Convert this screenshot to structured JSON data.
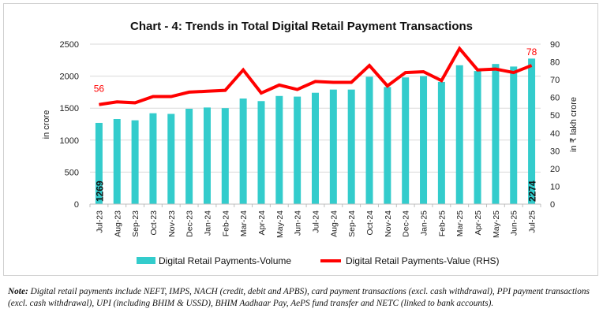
{
  "chart_data": {
    "type": "bar+line",
    "title": "Chart - 4: Trends in Total Digital Retail Payment Transactions",
    "ylabel_left": "in crore",
    "ylabel_right": "in ₹ lakh crore",
    "ylim_left": [
      0,
      2500
    ],
    "yticks_left": [
      0,
      500,
      1000,
      1500,
      2000,
      2500
    ],
    "ylim_right": [
      0,
      90
    ],
    "yticks_right": [
      0,
      10,
      20,
      30,
      40,
      50,
      60,
      70,
      80,
      90
    ],
    "grid": true,
    "legend_position": "bottom",
    "categories": [
      "Jul-23",
      "Aug-23",
      "Sep-23",
      "Oct-23",
      "Nov-23",
      "Dec-23",
      "Jan-24",
      "Feb-24",
      "Mar-24",
      "Apr-24",
      "May-24",
      "Jun-24",
      "Jul-24",
      "Aug-24",
      "Sep-24",
      "Oct-24",
      "Nov-24",
      "Dec-24",
      "Jan-25",
      "Feb-25",
      "Mar-25",
      "Apr-25",
      "May-25",
      "Jun-25",
      "Jul-25"
    ],
    "series": [
      {
        "name": "Digital Retail Payments-Volume",
        "type": "bar",
        "axis": "left",
        "color": "#33CCCC",
        "values": [
          1269,
          1330,
          1310,
          1420,
          1410,
          1490,
          1510,
          1500,
          1650,
          1610,
          1690,
          1680,
          1740,
          1790,
          1790,
          1990,
          1830,
          1980,
          2000,
          1910,
          2170,
          2080,
          2190,
          2150,
          2274
        ],
        "data_labels": {
          "first": "1269",
          "last": "2274"
        }
      },
      {
        "name": "Digital Retail Payments-Value (RHS)",
        "type": "line",
        "axis": "right",
        "color": "#FF0000",
        "values": [
          56,
          57.5,
          57,
          60.5,
          60.5,
          63,
          63.5,
          64,
          75.5,
          62.5,
          67,
          64.5,
          69,
          68.5,
          68.5,
          78,
          66.5,
          74,
          74.5,
          69.5,
          87.5,
          75.5,
          76,
          74,
          78
        ],
        "data_labels": {
          "first": "56",
          "last": "78"
        }
      }
    ]
  },
  "note": {
    "label": "Note:",
    "text": "Digital retail payments include NEFT, IMPS, NACH (credit, debit and APBS), card payment transactions (excl. cash withdrawal), PPI payment transactions (excl. cash withdrawal), UPI (including BHIM & USSD), BHIM Aadhaar Pay, AePS fund transfer and NETC (linked to bank accounts)."
  }
}
